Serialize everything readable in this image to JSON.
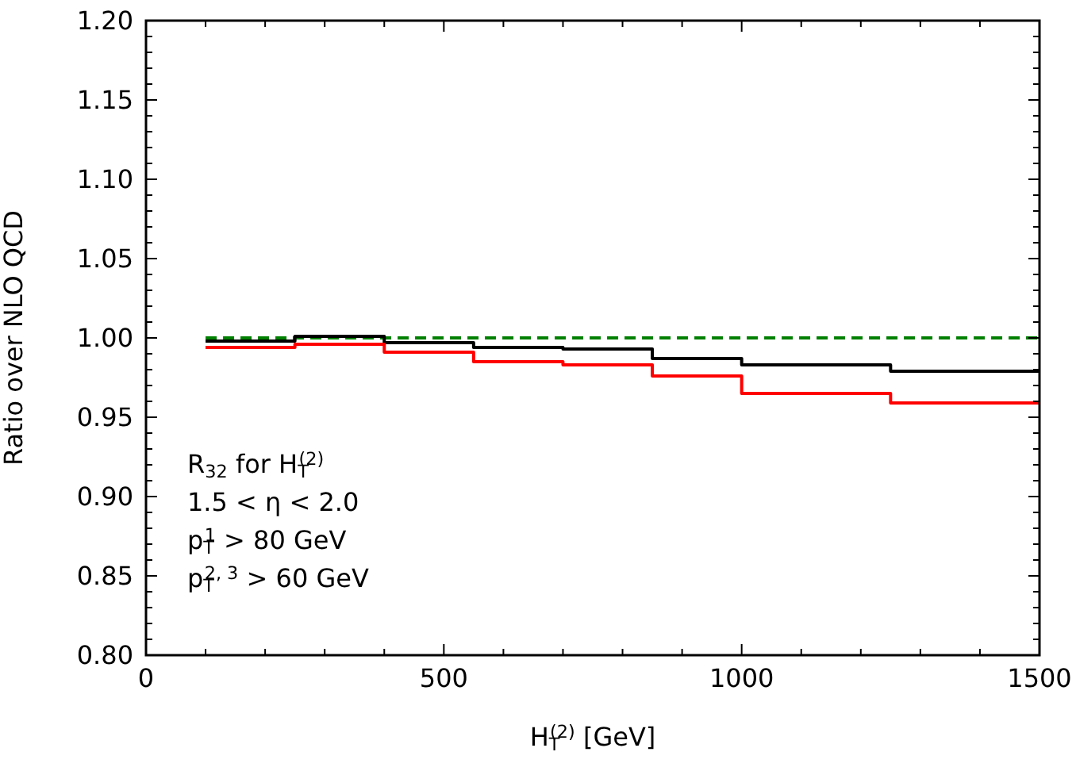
{
  "chart_data": {
    "type": "step",
    "ylabel": "Ratio over NLO QCD",
    "xlabel": "H$_{T}$$^{(2)}$ [GeV]",
    "xlim": [
      0,
      1500
    ],
    "ylim": [
      0.8,
      1.2
    ],
    "xticks": [
      0,
      {
        "value": 100,
        "label": null
      },
      {
        "value": 200,
        "label": null
      },
      {
        "value": 300,
        "label": null
      },
      {
        "value": 400,
        "label": null
      },
      500,
      {
        "value": 600,
        "label": null
      },
      {
        "value": 700,
        "label": null
      },
      {
        "value": 800,
        "label": null
      },
      {
        "value": 900,
        "label": null
      },
      1000,
      {
        "value": 1100,
        "label": null
      },
      {
        "value": 1200,
        "label": null
      },
      {
        "value": 1300,
        "label": null
      },
      {
        "value": 1400,
        "label": null
      },
      1500
    ],
    "yticks": [
      {
        "value": 0.8,
        "label": "0.80"
      },
      {
        "value": 0.81,
        "label": null
      },
      {
        "value": 0.82,
        "label": null
      },
      {
        "value": 0.83,
        "label": null
      },
      {
        "value": 0.84,
        "label": null
      },
      {
        "value": 0.85,
        "label": "0.85"
      },
      {
        "value": 0.86,
        "label": null
      },
      {
        "value": 0.87,
        "label": null
      },
      {
        "value": 0.88,
        "label": null
      },
      {
        "value": 0.89,
        "label": null
      },
      {
        "value": 0.9,
        "label": "0.90"
      },
      {
        "value": 0.91,
        "label": null
      },
      {
        "value": 0.92,
        "label": null
      },
      {
        "value": 0.93,
        "label": null
      },
      {
        "value": 0.94,
        "label": null
      },
      {
        "value": 0.95,
        "label": "0.95"
      },
      {
        "value": 0.96,
        "label": null
      },
      {
        "value": 0.97,
        "label": null
      },
      {
        "value": 0.98,
        "label": null
      },
      {
        "value": 0.99,
        "label": null
      },
      {
        "value": 1.0,
        "label": "1.00"
      },
      {
        "value": 1.01,
        "label": null
      },
      {
        "value": 1.02,
        "label": null
      },
      {
        "value": 1.03,
        "label": null
      },
      {
        "value": 1.04,
        "label": null
      },
      {
        "value": 1.05,
        "label": "1.05"
      },
      {
        "value": 1.06,
        "label": null
      },
      {
        "value": 1.07,
        "label": null
      },
      {
        "value": 1.08,
        "label": null
      },
      {
        "value": 1.09,
        "label": null
      },
      {
        "value": 1.1,
        "label": "1.10"
      },
      {
        "value": 1.11,
        "label": null
      },
      {
        "value": 1.12,
        "label": null
      },
      {
        "value": 1.13,
        "label": null
      },
      {
        "value": 1.14,
        "label": null
      },
      {
        "value": 1.15,
        "label": "1.15"
      },
      {
        "value": 1.16,
        "label": null
      },
      {
        "value": 1.17,
        "label": null
      },
      {
        "value": 1.18,
        "label": null
      },
      {
        "value": 1.19,
        "label": null
      },
      {
        "value": 1.2,
        "label": "1.20"
      }
    ],
    "x": [
      100,
      250,
      400,
      550,
      700,
      850,
      1000,
      1250,
      1500
    ],
    "series": [
      {
        "type": "line",
        "x": [
          100,
          1500
        ],
        "values": [
          1.0,
          1.0
        ],
        "color": "#008000",
        "line_style": "dashed"
      },
      {
        "color": "#000000",
        "values": [
          0.998,
          1.001,
          0.997,
          0.994,
          0.993,
          0.987,
          0.983,
          0.979,
          0.979
        ]
      },
      {
        "color": "#ff0000",
        "values": [
          0.994,
          0.996,
          0.991,
          0.985,
          0.983,
          0.976,
          0.965,
          0.959,
          0.959
        ]
      }
    ],
    "annotations": [
      "R$_{32}$ for H$_{T}$$^{(2)}$",
      "1.5 < η < 2.0",
      "p$_{T}$$^{1}$ > 80 GeV",
      "p$_{T}$$^{2, 3}$ > 60 GeV"
    ],
    "grid": false,
    "marker": "none"
  }
}
